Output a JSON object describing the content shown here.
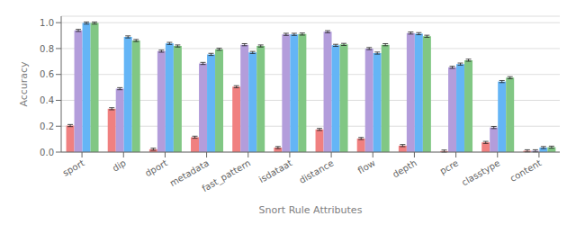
{
  "chart_data": {
    "type": "bar",
    "xlabel": "Snort Rule Attributes",
    "ylabel": "Accuracy",
    "categories": [
      "sport",
      "dip",
      "dport",
      "metadata",
      "fast_pattern",
      "isdataat",
      "distance",
      "flow",
      "depth",
      "pcre",
      "classtype",
      "content"
    ],
    "series": [
      {
        "color": "#F08080",
        "values": [
          0.205,
          0.335,
          0.022,
          0.115,
          0.505,
          0.035,
          0.175,
          0.105,
          0.05,
          0.008,
          0.075,
          0.01
        ],
        "errors": [
          0.008,
          0.008,
          0.008,
          0.008,
          0.008,
          0.008,
          0.008,
          0.008,
          0.008,
          0.008,
          0.008,
          0.008
        ]
      },
      {
        "color": "#B39DDB",
        "values": [
          0.94,
          0.49,
          0.78,
          0.685,
          0.83,
          0.91,
          0.93,
          0.8,
          0.92,
          0.655,
          0.19,
          0.01
        ],
        "errors": [
          0.008,
          0.008,
          0.008,
          0.008,
          0.008,
          0.008,
          0.008,
          0.008,
          0.008,
          0.008,
          0.008,
          0.008
        ]
      },
      {
        "color": "#64B5F6",
        "values": [
          0.997,
          0.89,
          0.84,
          0.755,
          0.77,
          0.91,
          0.825,
          0.765,
          0.915,
          0.68,
          0.545,
          0.035
        ],
        "errors": [
          0.008,
          0.008,
          0.008,
          0.008,
          0.008,
          0.008,
          0.008,
          0.008,
          0.008,
          0.008,
          0.008,
          0.008
        ]
      },
      {
        "color": "#81C784",
        "values": [
          0.997,
          0.862,
          0.82,
          0.795,
          0.82,
          0.912,
          0.832,
          0.83,
          0.895,
          0.71,
          0.575,
          0.038
        ],
        "errors": [
          0.008,
          0.008,
          0.008,
          0.008,
          0.008,
          0.008,
          0.008,
          0.008,
          0.008,
          0.008,
          0.008,
          0.008
        ]
      }
    ],
    "ylim": [
      0,
      1.05
    ],
    "yticks": [
      {
        "value": 0,
        "label": "0.0"
      },
      0.2,
      0.4,
      0.6,
      0.8,
      {
        "value": 1,
        "label": "1.0"
      }
    ],
    "grid": true
  }
}
